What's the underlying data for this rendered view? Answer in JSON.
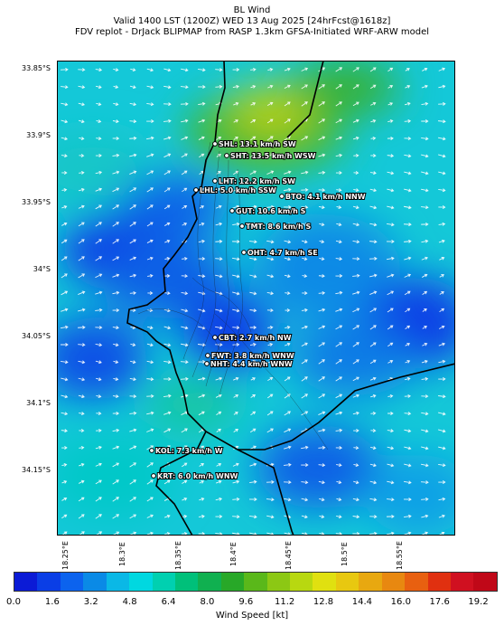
{
  "header": {
    "line1": "BL Wind",
    "line2": "Valid 1400 LST (1200Z) WED 13 Aug 2025 [24hrFcst@1618z]",
    "line3": "FDV replot - DrJack BLIPMAP from RASP 1.3km GFSA-Initiated WRF-ARW model"
  },
  "axes": {
    "y_ticks": [
      "33.85°S",
      "33.9°S",
      "33.95°S",
      "34°S",
      "34.05°S",
      "34.1°S",
      "34.15°S"
    ],
    "x_ticks": [
      "18.25°E",
      "18.3°E",
      "18.35°E",
      "18.4°E",
      "18.45°E",
      "18.5°E",
      "18.55°E"
    ]
  },
  "stations": [
    {
      "label": "SHL: 13.1 km/h SW"
    },
    {
      "label": "SHT: 13.5 km/h WSW"
    },
    {
      "label": "LHT: 12.2 km/h SW"
    },
    {
      "label": "LHL: 5.0 km/h SSW"
    },
    {
      "label": "BTO: 4.1 km/h NNW"
    },
    {
      "label": "GUT: 10.6 km/h S"
    },
    {
      "label": "TMT: 8.6 km/h S"
    },
    {
      "label": "OHT: 4.7 km/h SE"
    },
    {
      "label": "CBT: 2.7 km/h NW"
    },
    {
      "label": "FWT: 3.8 km/h WNW"
    },
    {
      "label": "NHT: 4.4 km/h WNW"
    },
    {
      "label": "KOL: 7.3 km/h W"
    },
    {
      "label": "KRT: 6.0 km/h WNW"
    }
  ],
  "colorbar": {
    "label": "Wind Speed [kt]",
    "ticks": [
      "0.0",
      "1.6",
      "3.2",
      "4.8",
      "6.4",
      "8.0",
      "9.6",
      "11.2",
      "12.8",
      "14.4",
      "16.0",
      "17.6",
      "19.2"
    ],
    "colors": [
      "#0b1bd6",
      "#0a3ee6",
      "#0c63ee",
      "#0a8ae6",
      "#0ab8e6",
      "#00d8e0",
      "#00d0b0",
      "#00c07a",
      "#10b050",
      "#28a828",
      "#5ab81a",
      "#8cc814",
      "#b8d810",
      "#e0e010",
      "#e8c810",
      "#e8a810",
      "#e88810",
      "#e86010",
      "#e03010",
      "#d01020",
      "#c00818"
    ]
  }
}
